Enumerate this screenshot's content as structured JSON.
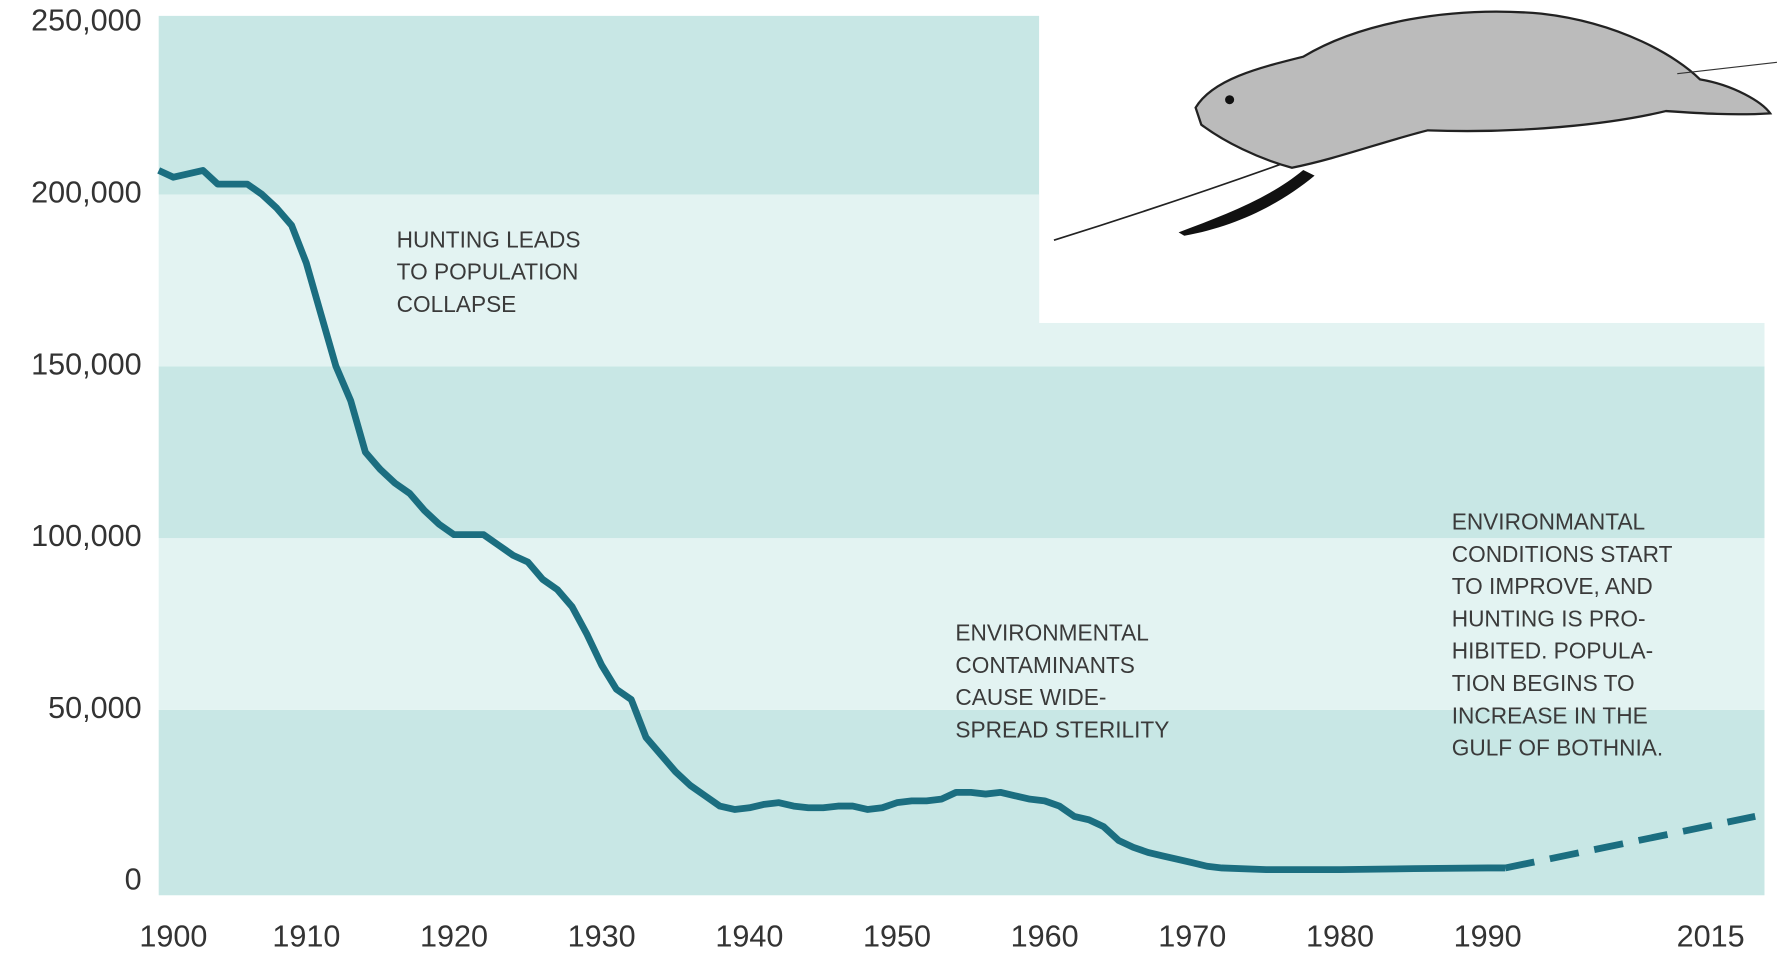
{
  "chart_data": {
    "type": "line",
    "xticks": [
      1900,
      1910,
      1920,
      1930,
      1940,
      1950,
      1960,
      1970,
      1980,
      1990,
      2015
    ],
    "ylim": [
      0,
      250000
    ],
    "yticks": [
      {
        "value": 0,
        "label": "0"
      },
      {
        "value": 50000,
        "label": "50,000"
      },
      {
        "value": 100000,
        "label": "100,000"
      },
      {
        "value": 150000,
        "label": "150,000"
      },
      {
        "value": 200000,
        "label": "200,000"
      },
      {
        "value": 250000,
        "label": "250,000"
      }
    ],
    "series": [
      {
        "color": "#1b6e80",
        "style": "solid",
        "x": [
          1900,
          1901,
          1902,
          1903,
          1904,
          1905,
          1906,
          1907,
          1908,
          1909,
          1910,
          1911,
          1912,
          1913,
          1914,
          1915,
          1916,
          1917,
          1918,
          1919,
          1920,
          1921,
          1922,
          1923,
          1924,
          1925,
          1926,
          1927,
          1928,
          1929,
          1930,
          1931,
          1932,
          1933,
          1934,
          1935,
          1936,
          1937,
          1938,
          1939,
          1940,
          1941,
          1942,
          1943,
          1944,
          1945,
          1946,
          1947,
          1948,
          1949,
          1950,
          1951,
          1952,
          1953,
          1954,
          1955,
          1956,
          1957,
          1958,
          1959,
          1960,
          1961,
          1962,
          1963,
          1964,
          1965,
          1966,
          1967,
          1968,
          1969,
          1970,
          1971,
          1972,
          1975,
          1980,
          1985,
          1990,
          1992
        ],
        "values": [
          207000,
          205000,
          206000,
          207000,
          203000,
          203000,
          203000,
          200000,
          196000,
          191000,
          180000,
          165000,
          150000,
          140000,
          125000,
          120000,
          116000,
          113000,
          108000,
          104000,
          101000,
          101000,
          101000,
          98000,
          95000,
          93000,
          88000,
          85000,
          80000,
          72000,
          63000,
          56000,
          53000,
          42000,
          37000,
          32000,
          28000,
          25000,
          22000,
          21000,
          21500,
          22500,
          23000,
          22000,
          21500,
          21500,
          22000,
          22000,
          21000,
          21500,
          23000,
          23500,
          23500,
          24000,
          26000,
          26000,
          25500,
          26000,
          25000,
          24000,
          23500,
          22000,
          19000,
          18000,
          16000,
          12000,
          10000,
          8500,
          7500,
          6500,
          5500,
          4500,
          4000,
          3500,
          3500,
          3800,
          4000,
          4000
        ]
      },
      {
        "color": "#1b6e80",
        "style": "dashed",
        "x": [
          1992,
          2020
        ],
        "values": [
          4000,
          19000
        ]
      }
    ],
    "annotations": [
      [
        "HUNTING LEADS",
        "TO POPULATION",
        "COLLAPSE"
      ],
      [
        "ENVIRONMENTAL",
        "CONTAMINANTS",
        "CAUSE WIDE-",
        "SPREAD STERILITY"
      ],
      [
        "ENVIRONMANTAL",
        "CONDITIONS START",
        "TO IMPROVE, AND",
        "HUNTING IS PRO-",
        "HIBITED. POPULA-",
        "TION BEGINS TO",
        "INCREASE IN THE",
        "GULF OF BOTHNIA."
      ]
    ]
  }
}
